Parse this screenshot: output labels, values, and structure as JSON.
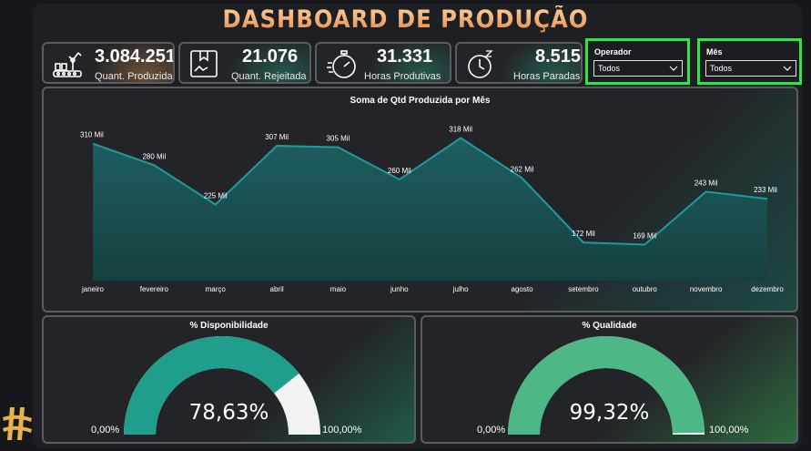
{
  "dashboard": {
    "title": "DASHBOARD DE PRODUÇÃO"
  },
  "kpis": [
    {
      "value": "3.084.251",
      "label": "Quant. Produzida",
      "icon": "robot-arm-icon"
    },
    {
      "value": "21.076",
      "label": "Quant. Rejeitada",
      "icon": "box-icon"
    },
    {
      "value": "31.331",
      "label": "Horas Produtivas",
      "icon": "stopwatch-icon"
    },
    {
      "value": "8.515",
      "label": "Horas Paradas",
      "icon": "clock-zzz-icon"
    }
  ],
  "filters": {
    "operador": {
      "label": "Operador",
      "value": "Todos"
    },
    "mes": {
      "label": "Mês",
      "value": "Todos"
    }
  },
  "colors": {
    "accent_orange": "#e38a4a",
    "teal": "#1f9e8c",
    "green": "#4db886",
    "filter_border": "#2ee64a"
  },
  "chart_data": [
    {
      "type": "area",
      "title": "Soma de Qtd Produzida por Mês",
      "categories": [
        "janeiro",
        "fevereiro",
        "março",
        "abril",
        "maio",
        "junho",
        "julho",
        "agosto",
        "setembro",
        "outubro",
        "novembro",
        "dezembro"
      ],
      "values": [
        310,
        280,
        225,
        307,
        305,
        260,
        318,
        262,
        172,
        169,
        243,
        233
      ],
      "value_labels": [
        "310 Mil",
        "280 Mil",
        "225 Mil",
        "307 Mil",
        "305 Mil",
        "260 Mil",
        "318 Mil",
        "262 Mil",
        "172 Mil",
        "169 Mil",
        "243 Mil",
        "233 Mil"
      ],
      "unit": "Mil",
      "ylim": [
        120,
        330
      ]
    },
    {
      "type": "gauge",
      "title": "% Disponibilidade",
      "value": 78.63,
      "value_label": "78,63%",
      "min_label": "0,00%",
      "max_label": "100,00%",
      "color": "#1f9e8c"
    },
    {
      "type": "gauge",
      "title": "% Qualidade",
      "value": 99.32,
      "value_label": "99,32%",
      "min_label": "0,00%",
      "max_label": "100,00%",
      "color": "#4db886"
    }
  ]
}
